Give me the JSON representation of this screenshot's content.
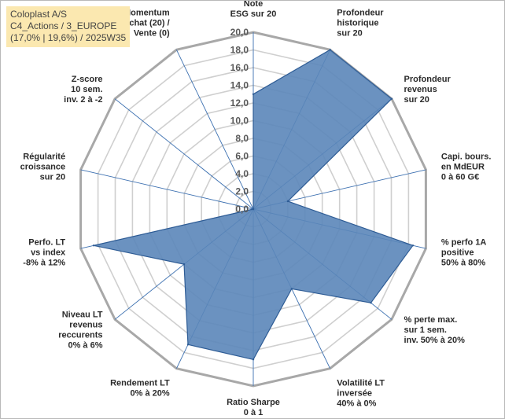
{
  "header": {
    "title_line1": "Coloplast A/S",
    "title_line2": "C4_Actions / 3_EUROPE",
    "title_line3": "(17,0% | 19,6%) / 2025W35"
  },
  "colors": {
    "fill": "#5b86b9",
    "stroke": "#2e5c95",
    "grid_ring": "#cfcfcf",
    "spoke": "#3b6fb0",
    "outer_ring": "#a8a8a8"
  },
  "chart_data": {
    "type": "radar",
    "rmin": 0,
    "rmax": 20,
    "tick_step": 2,
    "tick_labels": [
      "0,0",
      "2,0",
      "4,0",
      "6,0",
      "8,0",
      "10,0",
      "12,0",
      "14,0",
      "16,0",
      "18,0",
      "20,0"
    ],
    "axes": [
      {
        "label": [
          "Note",
          "ESG sur 20"
        ],
        "value": 13.0
      },
      {
        "label": [
          "Profondeur",
          "historique",
          "sur 20"
        ],
        "value": 20.0
      },
      {
        "label": [
          "Profondeur",
          "revenus",
          "sur 20"
        ],
        "value": 20.0
      },
      {
        "label": [
          "Capi. bours.",
          "en MdEUR",
          "0 à 60 G€"
        ],
        "value": 4.0
      },
      {
        "label": [
          "% perfo 1A",
          "positive",
          "50% à 80%"
        ],
        "value": 18.5
      },
      {
        "label": [
          "% perte max.",
          "sur 1 sem.",
          "inv. 50% à 20%"
        ],
        "value": 17.0
      },
      {
        "label": [
          "Volatilité LT",
          "inversée",
          "40% à 0%"
        ],
        "value": 10.0
      },
      {
        "label": [
          "Ratio Sharpe",
          "0 à 1"
        ],
        "value": 17.0
      },
      {
        "label": [
          "Rendement LT",
          "0% à 20%"
        ],
        "value": 17.0
      },
      {
        "label": [
          "Niveau LT",
          "revenus",
          "reccurents",
          "0% à 6%"
        ],
        "value": 10.0
      },
      {
        "label": [
          "Perfo. LT",
          "vs index",
          "-8% à 12%"
        ],
        "value": 18.5
      },
      {
        "label": [
          "Régularité",
          "croissance",
          "sur 20"
        ],
        "value": 0.0
      },
      {
        "label": [
          "Z-score",
          "10 sem.",
          "inv. 2 à -2"
        ],
        "value": 0.0
      },
      {
        "label": [
          "Momentum",
          "Achat (20) /",
          "Vente (0)"
        ],
        "value": 0.0
      }
    ]
  }
}
